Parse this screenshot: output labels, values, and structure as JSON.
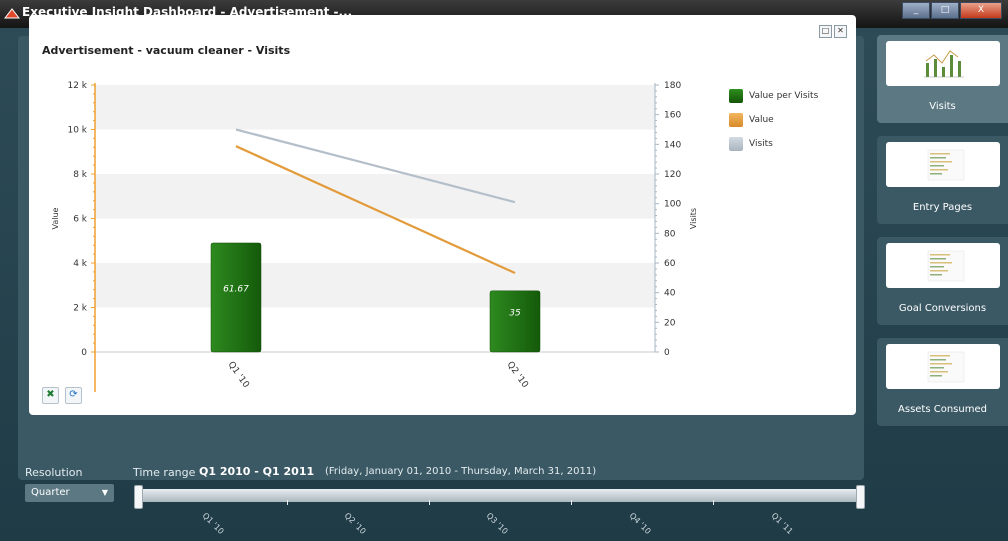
{
  "window": {
    "title": "Executive Insight Dashboard - Advertisement -...",
    "controls": [
      "_",
      "□",
      "X"
    ]
  },
  "panel": {
    "title": "Advertisement - vacuum cleaner - Visits",
    "restore_icon": "restore-icon",
    "close_icon": "close-icon",
    "export_excel_icon": "excel-export-icon",
    "refresh_icon": "refresh-icon"
  },
  "chart_data": {
    "type": "bar",
    "title": "Advertisement - vacuum cleaner - Visits",
    "categories": [
      "Q1 '10",
      "Q2 '10"
    ],
    "series": [
      {
        "name": "Value per Visits",
        "type": "bar",
        "axis": "left",
        "values": [
          4900,
          2750
        ],
        "labels": [
          "61.67",
          "35"
        ],
        "color": "#1d6b10"
      },
      {
        "name": "Value",
        "type": "line",
        "axis": "left",
        "values": [
          9250,
          3550
        ],
        "color": "#e29a3a"
      },
      {
        "name": "Visits",
        "type": "line",
        "axis": "right",
        "values": [
          150,
          101
        ],
        "color": "#b4bfc9"
      }
    ],
    "left_axis": {
      "label": "Value",
      "ticks": [
        "0",
        "2 k",
        "4 k",
        "6 k",
        "8 k",
        "10 k",
        "12 k"
      ],
      "ylim": [
        0,
        12000
      ]
    },
    "right_axis": {
      "label": "Visits",
      "ticks": [
        "0",
        "20",
        "40",
        "60",
        "80",
        "100",
        "120",
        "140",
        "160",
        "180"
      ],
      "ylim": [
        0,
        180
      ]
    },
    "legend_position": "right",
    "grid": "alternating bands"
  },
  "sidebar": {
    "items": [
      {
        "label": "Visits",
        "active": true
      },
      {
        "label": "Entry Pages",
        "active": false
      },
      {
        "label": "Goal Conversions",
        "active": false
      },
      {
        "label": "Assets Consumed",
        "active": false
      }
    ]
  },
  "controls": {
    "resolution_label": "Resolution",
    "resolution_value": "Quarter",
    "time_range_label": "Time range",
    "time_range_value": "Q1 2010 - Q1 2011",
    "time_range_detail": "(Friday, January 01, 2010 - Thursday, March 31, 2011)",
    "slider_ticks": [
      "Q1 '10",
      "Q2 '10",
      "Q3 '10",
      "Q4 '10",
      "Q1 '11"
    ]
  }
}
